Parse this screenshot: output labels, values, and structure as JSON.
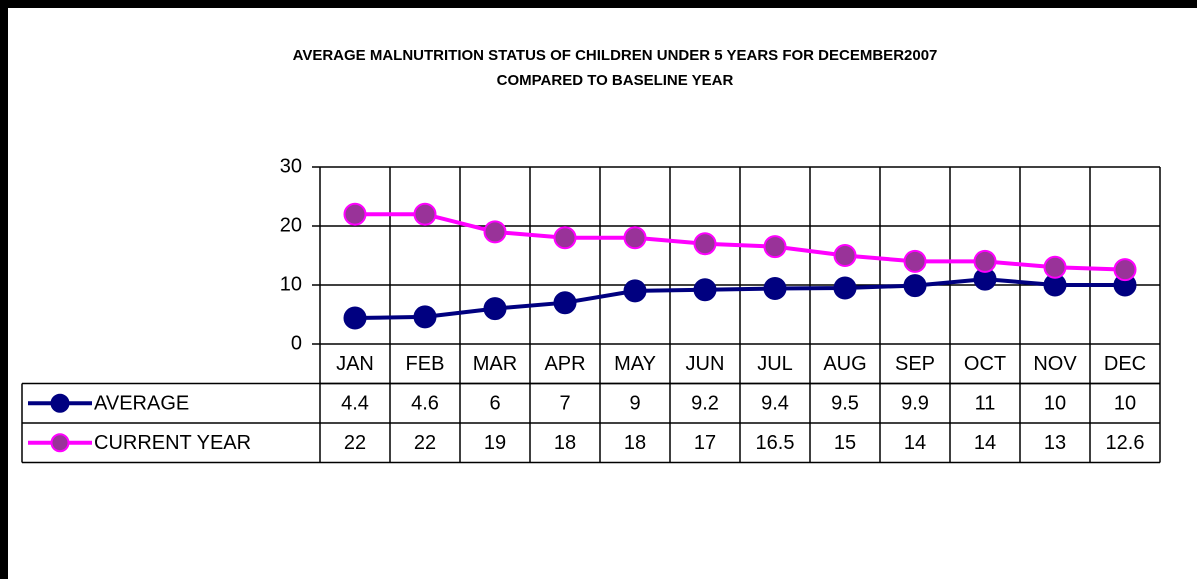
{
  "chart_data": {
    "type": "line",
    "title": [
      "AVERAGE MALNUTRITION STATUS OF CHILDREN UNDER 5 YEARS FOR DECEMBER2007",
      "COMPARED TO BASELINE YEAR"
    ],
    "categories": [
      "JAN",
      "FEB",
      "MAR",
      "APR",
      "MAY",
      "JUN",
      "JUL",
      "AUG",
      "SEP",
      "OCT",
      "NOV",
      "DEC"
    ],
    "series": [
      {
        "name": "AVERAGE",
        "color": "#000080",
        "values": [
          4.4,
          4.6,
          6,
          7,
          9,
          9.2,
          9.4,
          9.5,
          9.9,
          11,
          10,
          10
        ]
      },
      {
        "name": "CURRENT YEAR",
        "color": "#ff00ff",
        "values": [
          22,
          22,
          19,
          18,
          18,
          17,
          16.5,
          15,
          14,
          14,
          13,
          12.6
        ]
      }
    ],
    "ylim": [
      0,
      30
    ],
    "yticks": [
      0,
      10,
      20,
      30
    ],
    "grid": true
  }
}
